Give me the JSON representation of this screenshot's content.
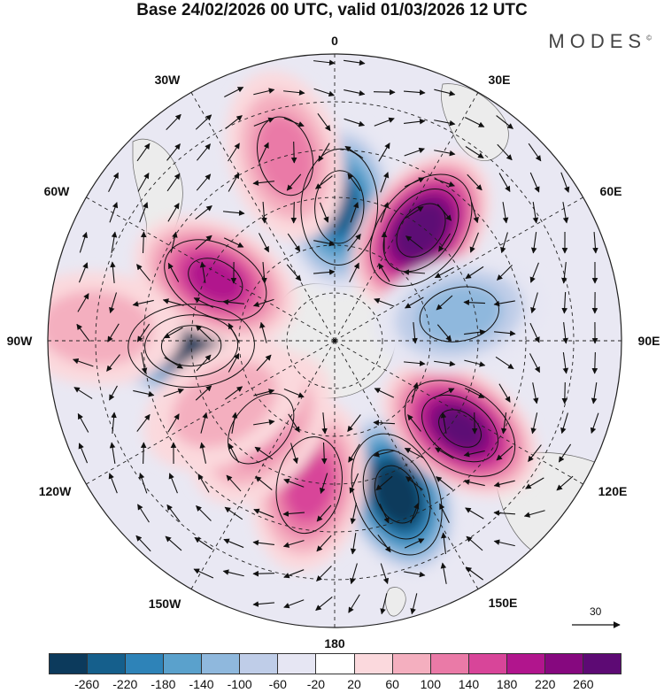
{
  "title": "Base 24/02/2026 00 UTC, valid 01/03/2026 12 UTC",
  "brand": "MODES",
  "brand_mark": "©",
  "longitude_labels": {
    "lon_0": "0",
    "lon_30E": "30E",
    "lon_60E": "60E",
    "lon_90E": "90E",
    "lon_120E": "120E",
    "lon_150E": "150E",
    "lon_180": "180",
    "lon_150W": "150W",
    "lon_120W": "120W",
    "lon_90W": "90W",
    "lon_60W": "60W",
    "lon_30W": "30W"
  },
  "reference_vector": {
    "label": "30"
  },
  "colorbar": {
    "colors": [
      "#0c3a5c",
      "#155f8c",
      "#2e83b8",
      "#5aa1cc",
      "#8fb8dd",
      "#bfcde8",
      "#e6e6f3",
      "#ffffff",
      "#fbd9dd",
      "#f4afbf",
      "#ea7aa7",
      "#d84599",
      "#b1158d",
      "#86087f",
      "#5d0a74"
    ],
    "labels": [
      "-260",
      "-220",
      "-180",
      "-140",
      "-100",
      "-60",
      "-20",
      "20",
      "60",
      "100",
      "140",
      "180",
      "220",
      "260"
    ]
  },
  "anomaly_centers": [
    {
      "name": "neg-atlantic",
      "lon": 22,
      "lat": -38,
      "value": -300
    },
    {
      "name": "pos-southafrica",
      "lon": 55,
      "lat": -42,
      "value": 260
    },
    {
      "name": "pos-southatlantic",
      "lon": -10,
      "lat": -44,
      "value": 170
    },
    {
      "name": "pos-small-1",
      "lon": -40,
      "lat": -54,
      "value": 100
    },
    {
      "name": "neg-pacific-east",
      "lon": -88,
      "lat": -45,
      "value": -300
    },
    {
      "name": "pos-southpacific",
      "lon": -117,
      "lat": -48,
      "value": 200
    },
    {
      "name": "neg-pacific-south",
      "lon": 178,
      "lat": -48,
      "value": -240
    },
    {
      "name": "pos-australia",
      "lon": 142,
      "lat": -46,
      "value": 300
    },
    {
      "name": "neg-indian",
      "lon": 102,
      "lat": -50,
      "value": -130
    },
    {
      "name": "pos-nz",
      "lon": -165,
      "lat": -30,
      "value": 120
    },
    {
      "name": "pos-argentina",
      "lon": -60,
      "lat": -50,
      "value": 80
    },
    {
      "name": "pos-eastpacific",
      "lon": -93,
      "lat": -15,
      "value": 70
    }
  ]
}
